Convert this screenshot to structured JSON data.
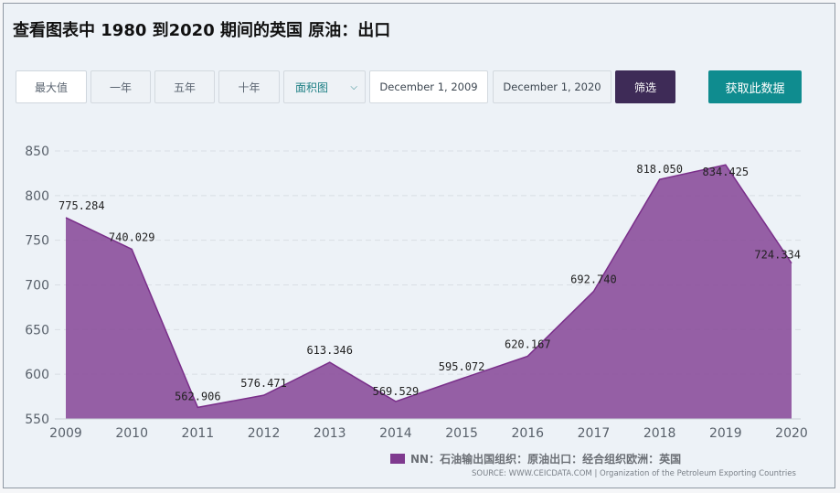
{
  "title": "查看图表中 1980 到2020 期间的英国 原油：出口",
  "controls": {
    "max": "最大值",
    "one_year": "一年",
    "five_year": "五年",
    "ten_year": "十年",
    "chart_type": "面积图",
    "start_date": "December 1, 2009",
    "end_date": "December 1, 2020",
    "filter": "筛选",
    "get_data": "获取此数据"
  },
  "legend": {
    "prefix": "NN",
    "label": "：石油输出国组织：原油出口：经合组织欧洲：英国",
    "color": "#7f3a8f"
  },
  "source": "SOURCE: WWW.CEICDATA.COM | Organization of the Petroleum Exporting Countries",
  "chart_data": {
    "type": "area",
    "x": [
      "2009",
      "2010",
      "2011",
      "2012",
      "2013",
      "2014",
      "2015",
      "2016",
      "2017",
      "2018",
      "2019",
      "2020"
    ],
    "values": [
      775.284,
      740.029,
      562.906,
      576.471,
      613.346,
      569.529,
      595.072,
      620.167,
      692.74,
      818.05,
      834.425,
      724.334
    ],
    "labels": [
      "775.284",
      "740.029",
      "562.906",
      "576.471",
      "613.346",
      "569.529",
      "595.072",
      "620.167",
      "692.740",
      "818.050",
      "834.425",
      "724.334"
    ],
    "yticks": [
      550,
      600,
      650,
      700,
      750,
      800,
      850
    ],
    "ylim": [
      550,
      860
    ],
    "fill_color": "#8b4f9b",
    "line_color": "#7a2f8a",
    "grid": true,
    "legend_position": "bottom"
  }
}
